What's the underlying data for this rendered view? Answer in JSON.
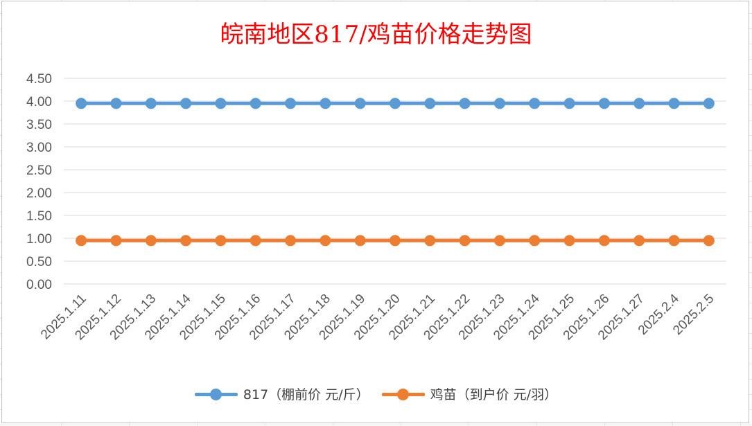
{
  "chart_data": {
    "type": "line",
    "title": "皖南地区817/鸡苗价格走势图",
    "categories": [
      "2025.1.11",
      "2025.1.12",
      "2025.1.13",
      "2025.1.14",
      "2025.1.15",
      "2025.1.16",
      "2025.1.17",
      "2025.1.18",
      "2025.1.19",
      "2025.1.20",
      "2025.1.21",
      "2025.1.22",
      "2025.1.23",
      "2025.1.24",
      "2025.1.25",
      "2025.1.26",
      "2025.1.27",
      "2025.2.4",
      "2025.2.5"
    ],
    "series": [
      {
        "name": "817（棚前价 元/斤）",
        "color": "#5b9bd5",
        "values": [
          3.95,
          3.95,
          3.95,
          3.95,
          3.95,
          3.95,
          3.95,
          3.95,
          3.95,
          3.95,
          3.95,
          3.95,
          3.95,
          3.95,
          3.95,
          3.95,
          3.95,
          3.95,
          3.95
        ]
      },
      {
        "name": "鸡苗（到户价 元/羽）",
        "color": "#ed7d31",
        "values": [
          0.95,
          0.95,
          0.95,
          0.95,
          0.95,
          0.95,
          0.95,
          0.95,
          0.95,
          0.95,
          0.95,
          0.95,
          0.95,
          0.95,
          0.95,
          0.95,
          0.95,
          0.95,
          0.95
        ]
      }
    ],
    "yticks": [
      "0.00",
      "0.50",
      "1.00",
      "1.50",
      "2.00",
      "2.50",
      "3.00",
      "3.50",
      "4.00",
      "4.50"
    ],
    "ylim": [
      0,
      4.5
    ],
    "xlabel": "",
    "ylabel": "",
    "grid": true,
    "legend": "bottom",
    "title_color": "#ff0000"
  }
}
